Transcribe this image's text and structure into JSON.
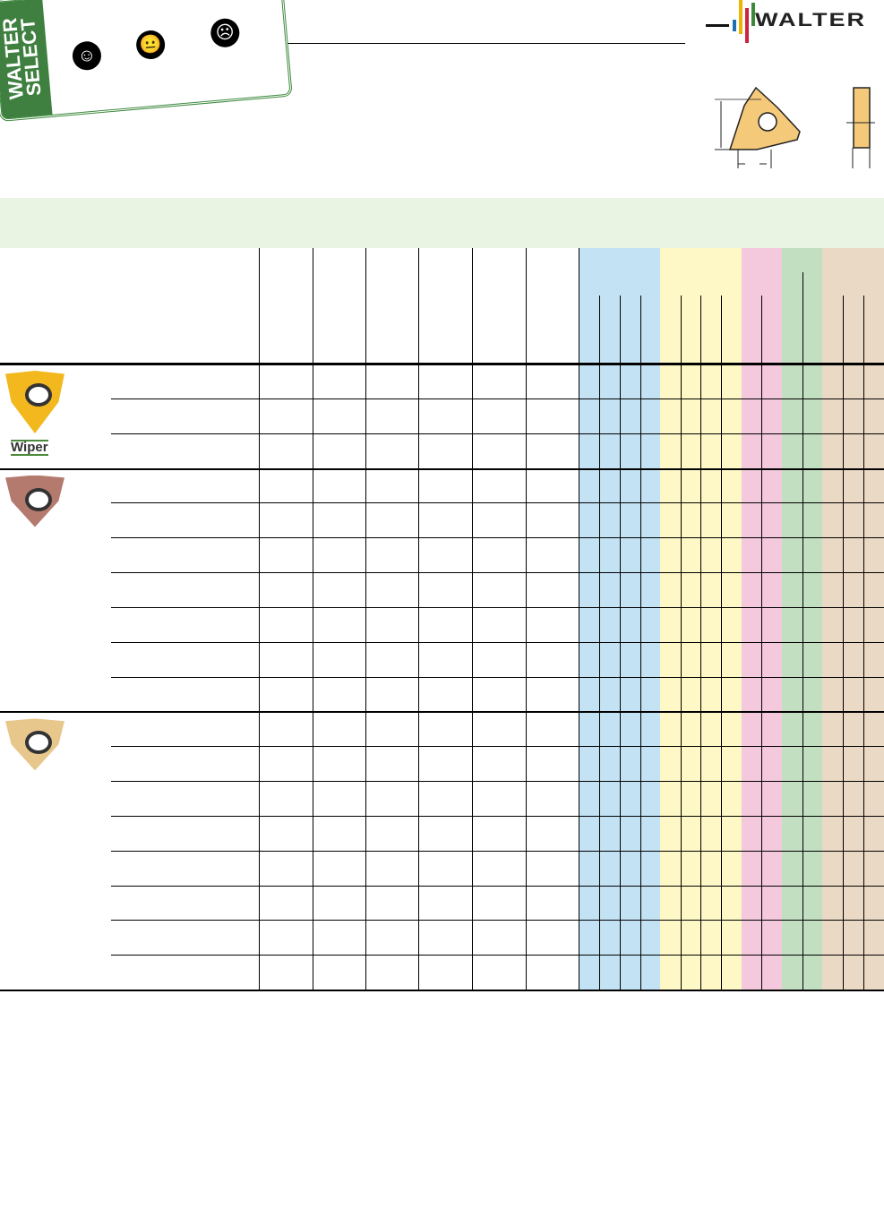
{
  "brand": {
    "logo_text": "WALTER",
    "bar_colors": [
      "#1f6fb5",
      "#f0b400",
      "#d0213f",
      "#3a8a3a"
    ]
  },
  "table": {
    "header_band_color": "#eaf4e2",
    "material_groups": [
      {
        "color": "#c3e3f4"
      },
      {
        "color": "#fdf8c6"
      },
      {
        "color": "#f5c9dd"
      },
      {
        "color": "#c2dfc2"
      },
      {
        "color": "#ead9c4"
      }
    ],
    "groups": [
      {
        "label": "Wiper",
        "rows": 3,
        "insert_color": "#f2b81e"
      },
      {
        "rows": 7,
        "insert_color": "#b47a6e"
      },
      {
        "rows": 8,
        "insert_color": "#e8c78c"
      }
    ]
  },
  "stamp": {
    "title_line1": "WALTER",
    "title_line2": "SELECT",
    "faces": [
      "happy-face-icon",
      "neutral-face-icon",
      "angry-face-icon"
    ]
  }
}
